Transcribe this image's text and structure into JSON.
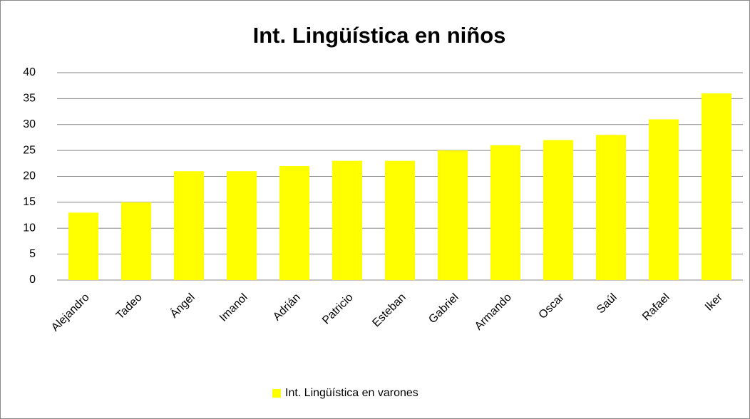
{
  "chart_data": {
    "type": "bar",
    "title": "Int. Lingüística en niños",
    "categories": [
      "Alejandro",
      "Tadeo",
      "Ángel",
      "Imanol",
      "Adrián",
      "Patricio",
      "Esteban",
      "Gabriel",
      "Armando",
      "Oscar",
      "Saúl",
      "Rafael",
      "Iker"
    ],
    "series": [
      {
        "name": "Int. Lingüística en varones",
        "color": "#ffff00",
        "values": [
          13,
          15,
          21,
          21,
          22,
          23,
          23,
          25,
          26,
          27,
          28,
          31,
          36
        ]
      }
    ],
    "ylim": [
      0,
      40
    ],
    "yticks": [
      0,
      5,
      10,
      15,
      20,
      25,
      30,
      35,
      40
    ],
    "grid": true,
    "legend": "bottom"
  }
}
